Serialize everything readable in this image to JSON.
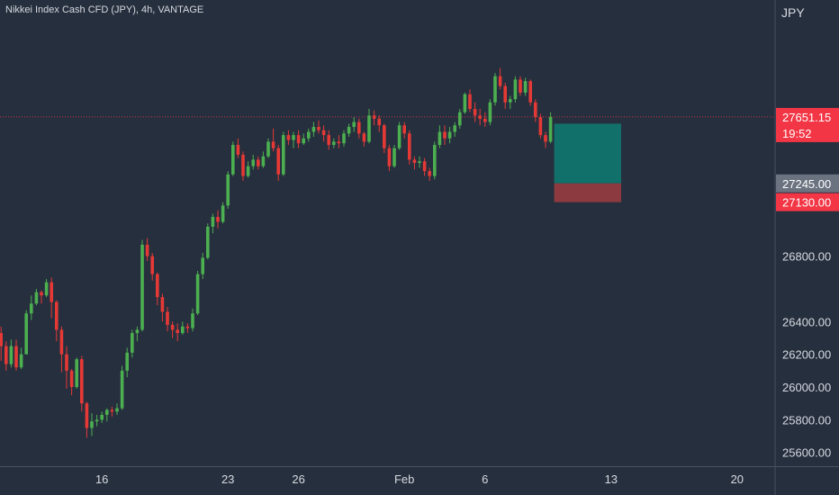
{
  "header": {
    "title": "Nikkei Index Cash CFD (JPY), 4h, VANTAGE"
  },
  "price_axis": {
    "currency": "JPY"
  },
  "colors": {
    "background": "#262f3e",
    "up": "#4caf50",
    "down": "#e53935",
    "target_zone": "#12706b",
    "stop_zone": "#8c3a3f",
    "price_badge": "#f23645",
    "neutral_badge": "#6b7280"
  },
  "chart_data": {
    "type": "candlestick",
    "symbol": "Nikkei Index Cash CFD (JPY)",
    "interval": "4h",
    "source": "VANTAGE",
    "ylim": [
      25450,
      28300
    ],
    "yticks": [
      25600,
      25800,
      26000,
      26200,
      26400,
      26800
    ],
    "ytick_labels": [
      "25600.00",
      "25800.00",
      "26000.00",
      "26200.00",
      "26400.00",
      "26800.00"
    ],
    "xtick_labels": [
      "16",
      "23",
      "26",
      "Feb",
      "6",
      "13",
      "20"
    ],
    "xtick_index": [
      20,
      45,
      59,
      80,
      96,
      121,
      146
    ],
    "ohlc": [
      [
        26330,
        26370,
        26160,
        26250
      ],
      [
        26250,
        26280,
        26100,
        26140
      ],
      [
        26140,
        26290,
        26120,
        26250
      ],
      [
        26250,
        26290,
        26100,
        26120
      ],
      [
        26120,
        26240,
        26110,
        26200
      ],
      [
        26200,
        26470,
        26200,
        26450
      ],
      [
        26450,
        26560,
        26410,
        26510
      ],
      [
        26510,
        26600,
        26500,
        26580
      ],
      [
        26580,
        26590,
        26510,
        26560
      ],
      [
        26560,
        26660,
        26550,
        26640
      ],
      [
        26640,
        26670,
        26420,
        26520
      ],
      [
        26520,
        26530,
        26280,
        26350
      ],
      [
        26350,
        26370,
        26090,
        26200
      ],
      [
        26200,
        26250,
        25990,
        26100
      ],
      [
        26100,
        26110,
        25950,
        26000
      ],
      [
        26000,
        26180,
        25990,
        26170
      ],
      [
        26170,
        26190,
        25850,
        25900
      ],
      [
        25900,
        25910,
        25690,
        25750
      ],
      [
        25750,
        25840,
        25700,
        25790
      ],
      [
        25790,
        25830,
        25760,
        25800
      ],
      [
        25800,
        25850,
        25780,
        25830
      ],
      [
        25830,
        25870,
        25790,
        25860
      ],
      [
        25860,
        25880,
        25820,
        25850
      ],
      [
        25850,
        25900,
        25830,
        25870
      ],
      [
        25870,
        26130,
        25860,
        26100
      ],
      [
        26100,
        26240,
        26060,
        26210
      ],
      [
        26210,
        26350,
        26180,
        26330
      ],
      [
        26330,
        26370,
        26280,
        26350
      ],
      [
        26350,
        26900,
        26340,
        26870
      ],
      [
        26870,
        26910,
        26770,
        26800
      ],
      [
        26800,
        26820,
        26650,
        26690
      ],
      [
        26690,
        26700,
        26500,
        26550
      ],
      [
        26550,
        26570,
        26400,
        26460
      ],
      [
        26460,
        26490,
        26340,
        26380
      ],
      [
        26380,
        26400,
        26300,
        26350
      ],
      [
        26350,
        26390,
        26280,
        26330
      ],
      [
        26330,
        26400,
        26320,
        26370
      ],
      [
        26370,
        26390,
        26330,
        26360
      ],
      [
        26360,
        26480,
        26340,
        26450
      ],
      [
        26450,
        26710,
        26440,
        26690
      ],
      [
        26690,
        26820,
        26660,
        26790
      ],
      [
        26790,
        27000,
        26780,
        26980
      ],
      [
        26980,
        27060,
        26940,
        27040
      ],
      [
        27040,
        27080,
        26970,
        27010
      ],
      [
        27010,
        27130,
        27000,
        27110
      ],
      [
        27110,
        27320,
        27090,
        27300
      ],
      [
        27300,
        27500,
        27290,
        27480
      ],
      [
        27480,
        27520,
        27400,
        27420
      ],
      [
        27420,
        27440,
        27260,
        27290
      ],
      [
        27290,
        27380,
        27280,
        27350
      ],
      [
        27350,
        27420,
        27330,
        27390
      ],
      [
        27390,
        27410,
        27330,
        27350
      ],
      [
        27350,
        27440,
        27340,
        27410
      ],
      [
        27410,
        27520,
        27400,
        27500
      ],
      [
        27500,
        27580,
        27440,
        27460
      ],
      [
        27460,
        27480,
        27260,
        27300
      ],
      [
        27300,
        27560,
        27290,
        27540
      ],
      [
        27540,
        27570,
        27480,
        27510
      ],
      [
        27510,
        27560,
        27460,
        27540
      ],
      [
        27540,
        27570,
        27460,
        27490
      ],
      [
        27490,
        27550,
        27480,
        27520
      ],
      [
        27520,
        27580,
        27500,
        27560
      ],
      [
        27560,
        27620,
        27530,
        27590
      ],
      [
        27590,
        27630,
        27550,
        27570
      ],
      [
        27570,
        27600,
        27500,
        27540
      ],
      [
        27540,
        27570,
        27450,
        27480
      ],
      [
        27480,
        27520,
        27460,
        27500
      ],
      [
        27500,
        27540,
        27460,
        27490
      ],
      [
        27490,
        27570,
        27470,
        27550
      ],
      [
        27550,
        27610,
        27530,
        27590
      ],
      [
        27590,
        27650,
        27560,
        27620
      ],
      [
        27620,
        27640,
        27520,
        27550
      ],
      [
        27550,
        27560,
        27470,
        27500
      ],
      [
        27500,
        27700,
        27490,
        27660
      ],
      [
        27660,
        27690,
        27600,
        27640
      ],
      [
        27640,
        27660,
        27560,
        27600
      ],
      [
        27600,
        27610,
        27430,
        27460
      ],
      [
        27460,
        27480,
        27320,
        27350
      ],
      [
        27350,
        27480,
        27340,
        27460
      ],
      [
        27460,
        27620,
        27450,
        27600
      ],
      [
        27600,
        27620,
        27520,
        27550
      ],
      [
        27550,
        27570,
        27360,
        27390
      ],
      [
        27390,
        27410,
        27330,
        27370
      ],
      [
        27370,
        27410,
        27340,
        27380
      ],
      [
        27380,
        27400,
        27290,
        27320
      ],
      [
        27320,
        27340,
        27260,
        27290
      ],
      [
        27290,
        27500,
        27270,
        27480
      ],
      [
        27480,
        27600,
        27460,
        27560
      ],
      [
        27560,
        27600,
        27480,
        27520
      ],
      [
        27520,
        27590,
        27490,
        27560
      ],
      [
        27560,
        27620,
        27530,
        27600
      ],
      [
        27600,
        27700,
        27580,
        27680
      ],
      [
        27680,
        27800,
        27670,
        27790
      ],
      [
        27790,
        27820,
        27680,
        27700
      ],
      [
        27700,
        27740,
        27620,
        27660
      ],
      [
        27660,
        27700,
        27600,
        27640
      ],
      [
        27640,
        27680,
        27590,
        27620
      ],
      [
        27620,
        27760,
        27600,
        27740
      ],
      [
        27740,
        27920,
        27720,
        27900
      ],
      [
        27900,
        27950,
        27820,
        27840
      ],
      [
        27840,
        27860,
        27700,
        27740
      ],
      [
        27740,
        27780,
        27700,
        27760
      ],
      [
        27760,
        27900,
        27740,
        27880
      ],
      [
        27880,
        27900,
        27780,
        27800
      ],
      [
        27800,
        27890,
        27780,
        27870
      ],
      [
        27870,
        27880,
        27720,
        27740
      ],
      [
        27740,
        27760,
        27620,
        27650
      ],
      [
        27650,
        27670,
        27520,
        27540
      ],
      [
        27540,
        27560,
        27460,
        27500
      ],
      [
        27500,
        27680,
        27490,
        27651.15
      ]
    ],
    "current_price": {
      "value": 27651.15,
      "label": "27651.15",
      "countdown": "19:52"
    },
    "position": {
      "entry": 27245.0,
      "entry_label": "27245.00",
      "stop": 27130.0,
      "stop_label": "27130.00",
      "target": 27610
    }
  }
}
